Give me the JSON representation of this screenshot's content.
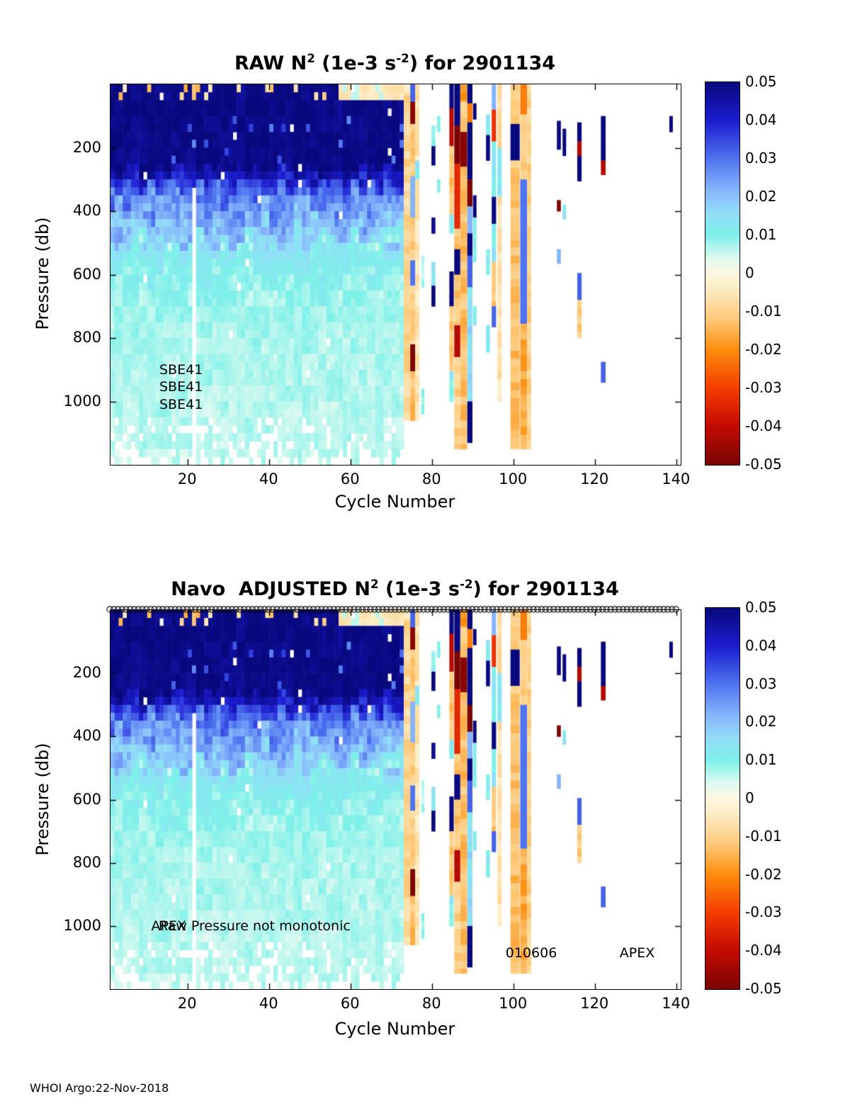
{
  "footer": "WHOI Argo:22-Nov-2018",
  "colormap": [
    [
      -0.05,
      "#7a0403"
    ],
    [
      -0.04,
      "#c30b00"
    ],
    [
      -0.03,
      "#f43d00"
    ],
    [
      -0.02,
      "#fd8d0c"
    ],
    [
      -0.012,
      "#fec979"
    ],
    [
      -0.004,
      "#fcedc5"
    ],
    [
      0.0,
      "#fdf8e2"
    ],
    [
      0.004,
      "#dffaf1"
    ],
    [
      0.01,
      "#7df1e9"
    ],
    [
      0.016,
      "#93dcf8"
    ],
    [
      0.022,
      "#85b4fb"
    ],
    [
      0.03,
      "#4f74ef"
    ],
    [
      0.04,
      "#1d1dd1"
    ],
    [
      0.05,
      "#08087e"
    ]
  ],
  "shared_field": {
    "dense_x_range": [
      1,
      72
    ],
    "gap_column": 21,
    "dense_profile": [
      [
        0,
        0.049
      ],
      [
        240,
        0.049
      ],
      [
        270,
        0.044
      ],
      [
        300,
        0.036
      ],
      [
        330,
        0.03
      ],
      [
        370,
        0.026
      ],
      [
        420,
        0.021
      ],
      [
        470,
        0.016
      ],
      [
        520,
        0.013
      ],
      [
        580,
        0.01
      ],
      [
        700,
        0.008
      ],
      [
        900,
        0.007
      ],
      [
        1200,
        0.006
      ]
    ],
    "sparse_columns": [
      {
        "x": 73.0,
        "w": 1.6,
        "segs": [
          [
            0,
            35,
            -0.004
          ],
          [
            35,
            1060,
            -0.009
          ]
        ]
      },
      {
        "x": 74.6,
        "w": 1.2,
        "segs": [
          [
            0,
            55,
            0.032
          ],
          [
            55,
            125,
            -0.048
          ],
          [
            125,
            290,
            -0.012
          ],
          [
            290,
            420,
            0.022
          ],
          [
            420,
            555,
            -0.01
          ],
          [
            555,
            635,
            0.03
          ],
          [
            635,
            820,
            -0.01
          ],
          [
            820,
            905,
            -0.05
          ],
          [
            905,
            1060,
            -0.013
          ]
        ]
      },
      {
        "x": 75.8,
        "w": 1.0,
        "segs": [
          [
            0,
            240,
            -0.006
          ],
          [
            240,
            300,
            0.012
          ],
          [
            300,
            1060,
            -0.006
          ]
        ]
      },
      {
        "x": 77.3,
        "w": 0.7,
        "segs": [
          [
            540,
            640,
            0.008
          ],
          [
            960,
            1040,
            0.008
          ]
        ]
      },
      {
        "x": 79.8,
        "w": 0.9,
        "segs": [
          [
            130,
            195,
            0.012
          ],
          [
            195,
            255,
            0.05
          ],
          [
            420,
            470,
            0.048
          ],
          [
            560,
            635,
            0.012
          ],
          [
            635,
            700,
            0.05
          ]
        ]
      },
      {
        "x": 81.2,
        "w": 0.7,
        "segs": [
          [
            100,
            150,
            0.012
          ],
          [
            300,
            340,
            0.012
          ]
        ]
      },
      {
        "x": 84.2,
        "w": 1.0,
        "segs": [
          [
            0,
            75,
            0.05
          ],
          [
            75,
            195,
            -0.042
          ],
          [
            195,
            410,
            -0.012
          ],
          [
            410,
            470,
            0.012
          ],
          [
            590,
            700,
            0.05
          ],
          [
            700,
            905,
            -0.012
          ],
          [
            905,
            1000,
            0.012
          ]
        ]
      },
      {
        "x": 85.4,
        "w": 1.4,
        "segs": [
          [
            0,
            130,
            0.05
          ],
          [
            130,
            250,
            -0.05
          ],
          [
            250,
            455,
            -0.034
          ],
          [
            455,
            520,
            -0.012
          ],
          [
            520,
            600,
            0.05
          ],
          [
            600,
            760,
            -0.012
          ],
          [
            760,
            860,
            -0.042
          ],
          [
            860,
            1150,
            -0.01
          ]
        ]
      },
      {
        "x": 86.9,
        "w": 1.6,
        "segs": [
          [
            0,
            55,
            -0.02
          ],
          [
            55,
            150,
            -0.012
          ],
          [
            150,
            260,
            -0.048
          ],
          [
            260,
            1150,
            -0.013
          ]
        ]
      },
      {
        "x": 88.6,
        "w": 1.2,
        "segs": [
          [
            0,
            60,
            0.05
          ],
          [
            60,
            120,
            -0.022
          ],
          [
            120,
            300,
            0.05
          ],
          [
            300,
            385,
            -0.05
          ],
          [
            385,
            470,
            0.022
          ],
          [
            470,
            540,
            0.05
          ],
          [
            540,
            640,
            0.032
          ],
          [
            640,
            1000,
            0.016
          ],
          [
            1000,
            1130,
            0.05
          ]
        ]
      },
      {
        "x": 90.0,
        "w": 0.8,
        "segs": [
          [
            60,
            110,
            0.05
          ],
          [
            350,
            420,
            0.05
          ],
          [
            420,
            560,
            0.012
          ],
          [
            700,
            760,
            0.012
          ]
        ]
      },
      {
        "x": 93.2,
        "w": 0.9,
        "segs": [
          [
            95,
            160,
            0.012
          ],
          [
            160,
            240,
            0.05
          ],
          [
            520,
            600,
            0.012
          ],
          [
            760,
            845,
            0.012
          ]
        ]
      },
      {
        "x": 94.6,
        "w": 1.0,
        "segs": [
          [
            0,
            80,
            0.022
          ],
          [
            80,
            180,
            -0.032
          ],
          [
            180,
            355,
            0.012
          ],
          [
            355,
            440,
            0.05
          ],
          [
            440,
            560,
            0.012
          ],
          [
            560,
            700,
            -0.012
          ],
          [
            700,
            765,
            0.032
          ]
        ]
      },
      {
        "x": 96.0,
        "w": 1.0,
        "segs": [
          [
            0,
            200,
            -0.008
          ],
          [
            200,
            355,
            0.012
          ],
          [
            355,
            1000,
            -0.006
          ]
        ]
      },
      {
        "x": 99.2,
        "w": 2.2,
        "segs": [
          [
            0,
            125,
            -0.012
          ],
          [
            125,
            240,
            0.05
          ],
          [
            240,
            1150,
            -0.013
          ]
        ]
      },
      {
        "x": 101.6,
        "w": 1.6,
        "segs": [
          [
            0,
            95,
            -0.022
          ],
          [
            95,
            300,
            -0.012
          ],
          [
            300,
            755,
            0.03
          ],
          [
            755,
            1150,
            -0.016
          ]
        ]
      },
      {
        "x": 103.3,
        "w": 0.9,
        "segs": [
          [
            0,
            1150,
            -0.01
          ]
        ]
      },
      {
        "x": 110.6,
        "w": 0.9,
        "segs": [
          [
            115,
            205,
            0.05
          ],
          [
            365,
            400,
            -0.05
          ],
          [
            520,
            565,
            0.022
          ]
        ]
      },
      {
        "x": 112.0,
        "w": 0.8,
        "segs": [
          [
            140,
            225,
            0.05
          ],
          [
            380,
            425,
            0.012
          ]
        ]
      },
      {
        "x": 115.6,
        "w": 1.0,
        "segs": [
          [
            120,
            180,
            0.05
          ],
          [
            180,
            225,
            -0.042
          ],
          [
            225,
            305,
            0.05
          ],
          [
            595,
            680,
            0.032
          ],
          [
            680,
            800,
            -0.012
          ]
        ]
      },
      {
        "x": 121.4,
        "w": 1.1,
        "segs": [
          [
            100,
            240,
            0.05
          ],
          [
            240,
            285,
            -0.042
          ],
          [
            875,
            940,
            0.032
          ]
        ]
      },
      {
        "x": 138.2,
        "w": 0.8,
        "segs": [
          [
            100,
            150,
            0.05
          ]
        ]
      }
    ]
  },
  "chart_data": [
    {
      "type": "heatmap",
      "title_parts": {
        "prefix": "RAW N",
        "sup1": "2",
        "mid": " (1e-3 s",
        "sup2": "-2",
        "suffix": ") for 2901134"
      },
      "xlabel": "Cycle Number",
      "ylabel": "Pressure (db)",
      "xlim": [
        1,
        141
      ],
      "ylim": [
        0,
        1200
      ],
      "y_inverted": true,
      "xticks": [
        20,
        40,
        60,
        80,
        100,
        120,
        140
      ],
      "yticks": [
        200,
        400,
        600,
        800,
        1000
      ],
      "colorbar": {
        "min": -0.05,
        "max": 0.05,
        "tick_labels": [
          "0.05",
          "0.04",
          "0.03",
          "0.02",
          "0.01",
          "0",
          "-0.01",
          "-0.02",
          "-0.03",
          "-0.04",
          "-0.05"
        ]
      },
      "top_markers": false,
      "annotations": [
        {
          "text": "SBE41",
          "x": 13,
          "p": 900
        },
        {
          "text": "SBE41",
          "x": 13,
          "p": 955
        },
        {
          "text": "SBE41",
          "x": 13,
          "p": 1010
        }
      ]
    },
    {
      "type": "heatmap",
      "title_parts": {
        "prefix": "Navo  ADJUSTED N",
        "sup1": "2",
        "mid": " (1e-3 s",
        "sup2": "-2",
        "suffix": ") for 2901134"
      },
      "xlabel": "Cycle Number",
      "ylabel": "Pressure (db)",
      "xlim": [
        1,
        141
      ],
      "ylim": [
        0,
        1200
      ],
      "y_inverted": true,
      "xticks": [
        20,
        40,
        60,
        80,
        100,
        120,
        140
      ],
      "yticks": [
        200,
        400,
        600,
        800,
        1000
      ],
      "colorbar": {
        "min": -0.05,
        "max": 0.05,
        "tick_labels": [
          "0.05",
          "0.04",
          "0.03",
          "0.02",
          "0.01",
          "0",
          "-0.01",
          "-0.02",
          "-0.03",
          "-0.04",
          "-0.05"
        ]
      },
      "top_markers": true,
      "annotations": [
        {
          "text": "APEX",
          "x": 11,
          "p": 1000
        },
        {
          "text": "Raw Pressure not monotonic",
          "x": 12.8,
          "p": 1000
        },
        {
          "text": "010606",
          "x": 98,
          "p": 1085
        },
        {
          "text": "APEX",
          "x": 126,
          "p": 1085
        }
      ]
    }
  ]
}
